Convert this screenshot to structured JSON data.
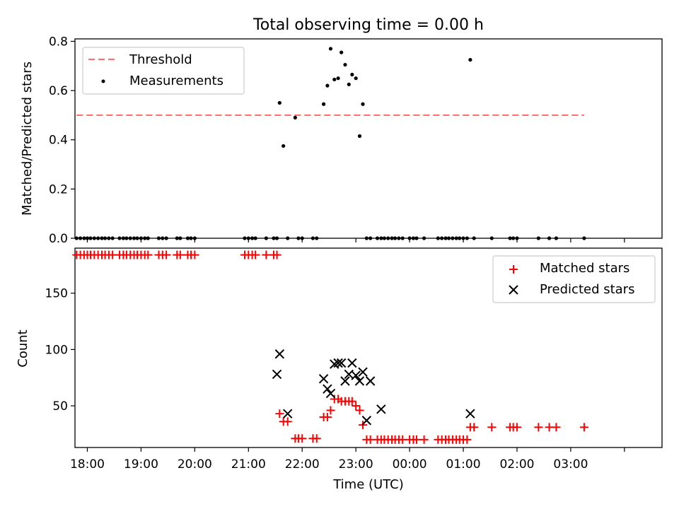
{
  "figure": {
    "title": "Total observing time = 0.00 h",
    "xlabel": "Time (UTC)"
  },
  "chart_data": [
    {
      "type": "scatter",
      "ylabel": "Matched/Predicted stars",
      "x_axis": "time-of-night (hours after 18:00 UTC; tick labels shown as clock times)",
      "xlim": [
        -0.23,
        10.7
      ],
      "ylim": [
        0,
        0.81
      ],
      "yticks": [
        0.0,
        0.2,
        0.4,
        0.6,
        0.8
      ],
      "ytick_labels": [
        "0.0",
        "0.2",
        "0.4",
        "0.6",
        "0.8"
      ],
      "legend_position": "top-left",
      "legend": [
        "Threshold",
        "Measurements"
      ],
      "threshold": {
        "name": "Threshold",
        "value": 0.5,
        "x_range": [
          -0.2,
          9.25
        ],
        "color": "#ff7070",
        "style": "dashed"
      },
      "measurements": {
        "name": "Measurements",
        "color": "#000000",
        "x": [
          -0.2,
          -0.13,
          -0.06,
          0.0,
          0.06,
          0.13,
          0.2,
          0.27,
          0.33,
          0.4,
          0.47,
          0.6,
          0.67,
          0.73,
          0.8,
          0.87,
          0.93,
          1.0,
          1.07,
          1.13,
          1.33,
          1.4,
          1.47,
          1.67,
          1.73,
          1.87,
          1.93,
          2.0,
          2.93,
          3.0,
          3.07,
          3.13,
          3.33,
          3.47,
          3.53,
          3.58,
          3.65,
          3.73,
          3.87,
          3.93,
          4.0,
          4.2,
          4.27,
          4.4,
          4.47,
          4.53,
          4.6,
          4.67,
          4.73,
          4.8,
          4.87,
          4.93,
          5.0,
          5.07,
          5.13,
          5.2,
          5.27,
          5.4,
          5.47,
          5.53,
          5.6,
          5.67,
          5.73,
          5.8,
          5.87,
          6.0,
          6.07,
          6.13,
          6.27,
          6.53,
          6.6,
          6.67,
          6.73,
          6.8,
          6.87,
          6.93,
          7.0,
          7.07,
          7.13,
          7.2,
          7.53,
          7.87,
          7.93,
          8.0,
          8.4,
          8.6,
          8.73,
          9.25
        ],
        "y": [
          0,
          0,
          0,
          0,
          0,
          0,
          0,
          0,
          0,
          0,
          0,
          0,
          0,
          0,
          0,
          0,
          0,
          0,
          0,
          0,
          0,
          0,
          0,
          0,
          0,
          0,
          0,
          0,
          0,
          0,
          0,
          0,
          0,
          0,
          0,
          0.55,
          0.375,
          0,
          0.49,
          0,
          0,
          0,
          0,
          0.545,
          0.62,
          0.77,
          0.645,
          0.65,
          0.755,
          0.705,
          0.625,
          0.665,
          0.65,
          0.415,
          0.545,
          0,
          0,
          0,
          0,
          0,
          0,
          0,
          0,
          0,
          0,
          0,
          0,
          0,
          0,
          0,
          0,
          0,
          0,
          0,
          0,
          0,
          0,
          0,
          0.725,
          0,
          0,
          0,
          0,
          0,
          0,
          0,
          0,
          0
        ]
      }
    },
    {
      "type": "scatter",
      "ylabel": "Count",
      "xlabel": "Time (UTC)",
      "xlim": [
        -0.23,
        10.7
      ],
      "ylim": [
        13,
        190
      ],
      "yticks": [
        50,
        100,
        150
      ],
      "ytick_labels": [
        "50",
        "100",
        "150"
      ],
      "xticks": [
        0,
        1,
        2,
        3,
        4,
        5,
        6,
        7,
        8,
        9,
        10
      ],
      "xtick_labels": [
        "18:00",
        "19:00",
        "20:00",
        "21:00",
        "22:00",
        "23:00",
        "00:00",
        "01:00",
        "02:00",
        "03:00",
        ""
      ],
      "legend_position": "top-right",
      "legend": [
        "Matched stars",
        "Predicted stars"
      ],
      "matched": {
        "name": "Matched stars",
        "color": "#ff0000",
        "marker": "+",
        "x": [
          -0.2,
          -0.13,
          -0.06,
          0.0,
          0.06,
          0.13,
          0.2,
          0.27,
          0.33,
          0.4,
          0.47,
          0.6,
          0.67,
          0.73,
          0.8,
          0.87,
          0.93,
          1.0,
          1.07,
          1.13,
          1.33,
          1.4,
          1.47,
          1.67,
          1.73,
          1.87,
          1.93,
          2.0,
          2.93,
          3.0,
          3.07,
          3.13,
          3.33,
          3.47,
          3.53,
          3.58,
          3.65,
          3.73,
          3.87,
          3.93,
          4.0,
          4.2,
          4.27,
          4.4,
          4.47,
          4.53,
          4.6,
          4.67,
          4.73,
          4.8,
          4.87,
          4.93,
          5.0,
          5.07,
          5.13,
          5.2,
          5.27,
          5.4,
          5.47,
          5.53,
          5.6,
          5.67,
          5.73,
          5.8,
          5.87,
          6.0,
          6.07,
          6.13,
          6.27,
          6.53,
          6.6,
          6.67,
          6.73,
          6.8,
          6.87,
          6.93,
          7.0,
          7.07,
          7.13,
          7.2,
          7.53,
          7.87,
          7.93,
          8.0,
          8.4,
          8.6,
          8.73,
          9.25
        ],
        "y": [
          184,
          184,
          184,
          184,
          184,
          184,
          184,
          184,
          184,
          184,
          184,
          184,
          184,
          184,
          184,
          184,
          184,
          184,
          184,
          184,
          184,
          184,
          184,
          184,
          184,
          184,
          184,
          184,
          184,
          184,
          184,
          184,
          184,
          184,
          184,
          43,
          36,
          36,
          21,
          21,
          21,
          21,
          21,
          40,
          40,
          46,
          56,
          56,
          54,
          54,
          54,
          54,
          50,
          46,
          33,
          20,
          20,
          20,
          20,
          20,
          20,
          20,
          20,
          20,
          20,
          20,
          20,
          20,
          20,
          20,
          20,
          20,
          20,
          20,
          20,
          20,
          20,
          20,
          31,
          31,
          31,
          31,
          31,
          31,
          31,
          31,
          31,
          31
        ]
      },
      "predicted": {
        "name": "Predicted stars",
        "color": "#000000",
        "marker": "x",
        "x": [
          3.53,
          3.58,
          3.73,
          4.4,
          4.47,
          4.53,
          4.6,
          4.67,
          4.73,
          4.8,
          4.87,
          4.93,
          5.0,
          5.07,
          5.13,
          5.2,
          5.27,
          5.47,
          7.13
        ],
        "y": [
          78,
          96,
          43,
          74,
          65,
          61,
          87,
          88,
          88,
          72,
          78,
          88,
          77,
          72,
          80,
          37,
          72,
          47,
          43
        ]
      }
    }
  ]
}
